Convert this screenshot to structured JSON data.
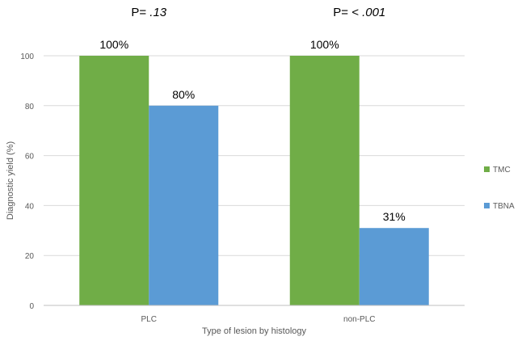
{
  "chart_data": {
    "type": "bar",
    "categories": [
      "PLC",
      "non-PLC"
    ],
    "series": [
      {
        "name": "TMC",
        "values": [
          100,
          100
        ],
        "labels": [
          "100%",
          "100%"
        ],
        "color": "#70ad47"
      },
      {
        "name": "TBNA",
        "values": [
          80,
          31
        ],
        "labels": [
          "80%",
          "31%"
        ],
        "color": "#5b9bd5"
      }
    ],
    "annotations": [
      {
        "prefix": "P= ",
        "value": ".13"
      },
      {
        "prefix": "P= ",
        "value": "< .001"
      }
    ],
    "xlabel": "Type of lesion by histology",
    "ylabel": "Diagnostic yield (%)",
    "ylim": [
      0,
      100
    ],
    "yticks": [
      0,
      20,
      40,
      60,
      80,
      100
    ],
    "grid": true,
    "legend_position": "right"
  }
}
